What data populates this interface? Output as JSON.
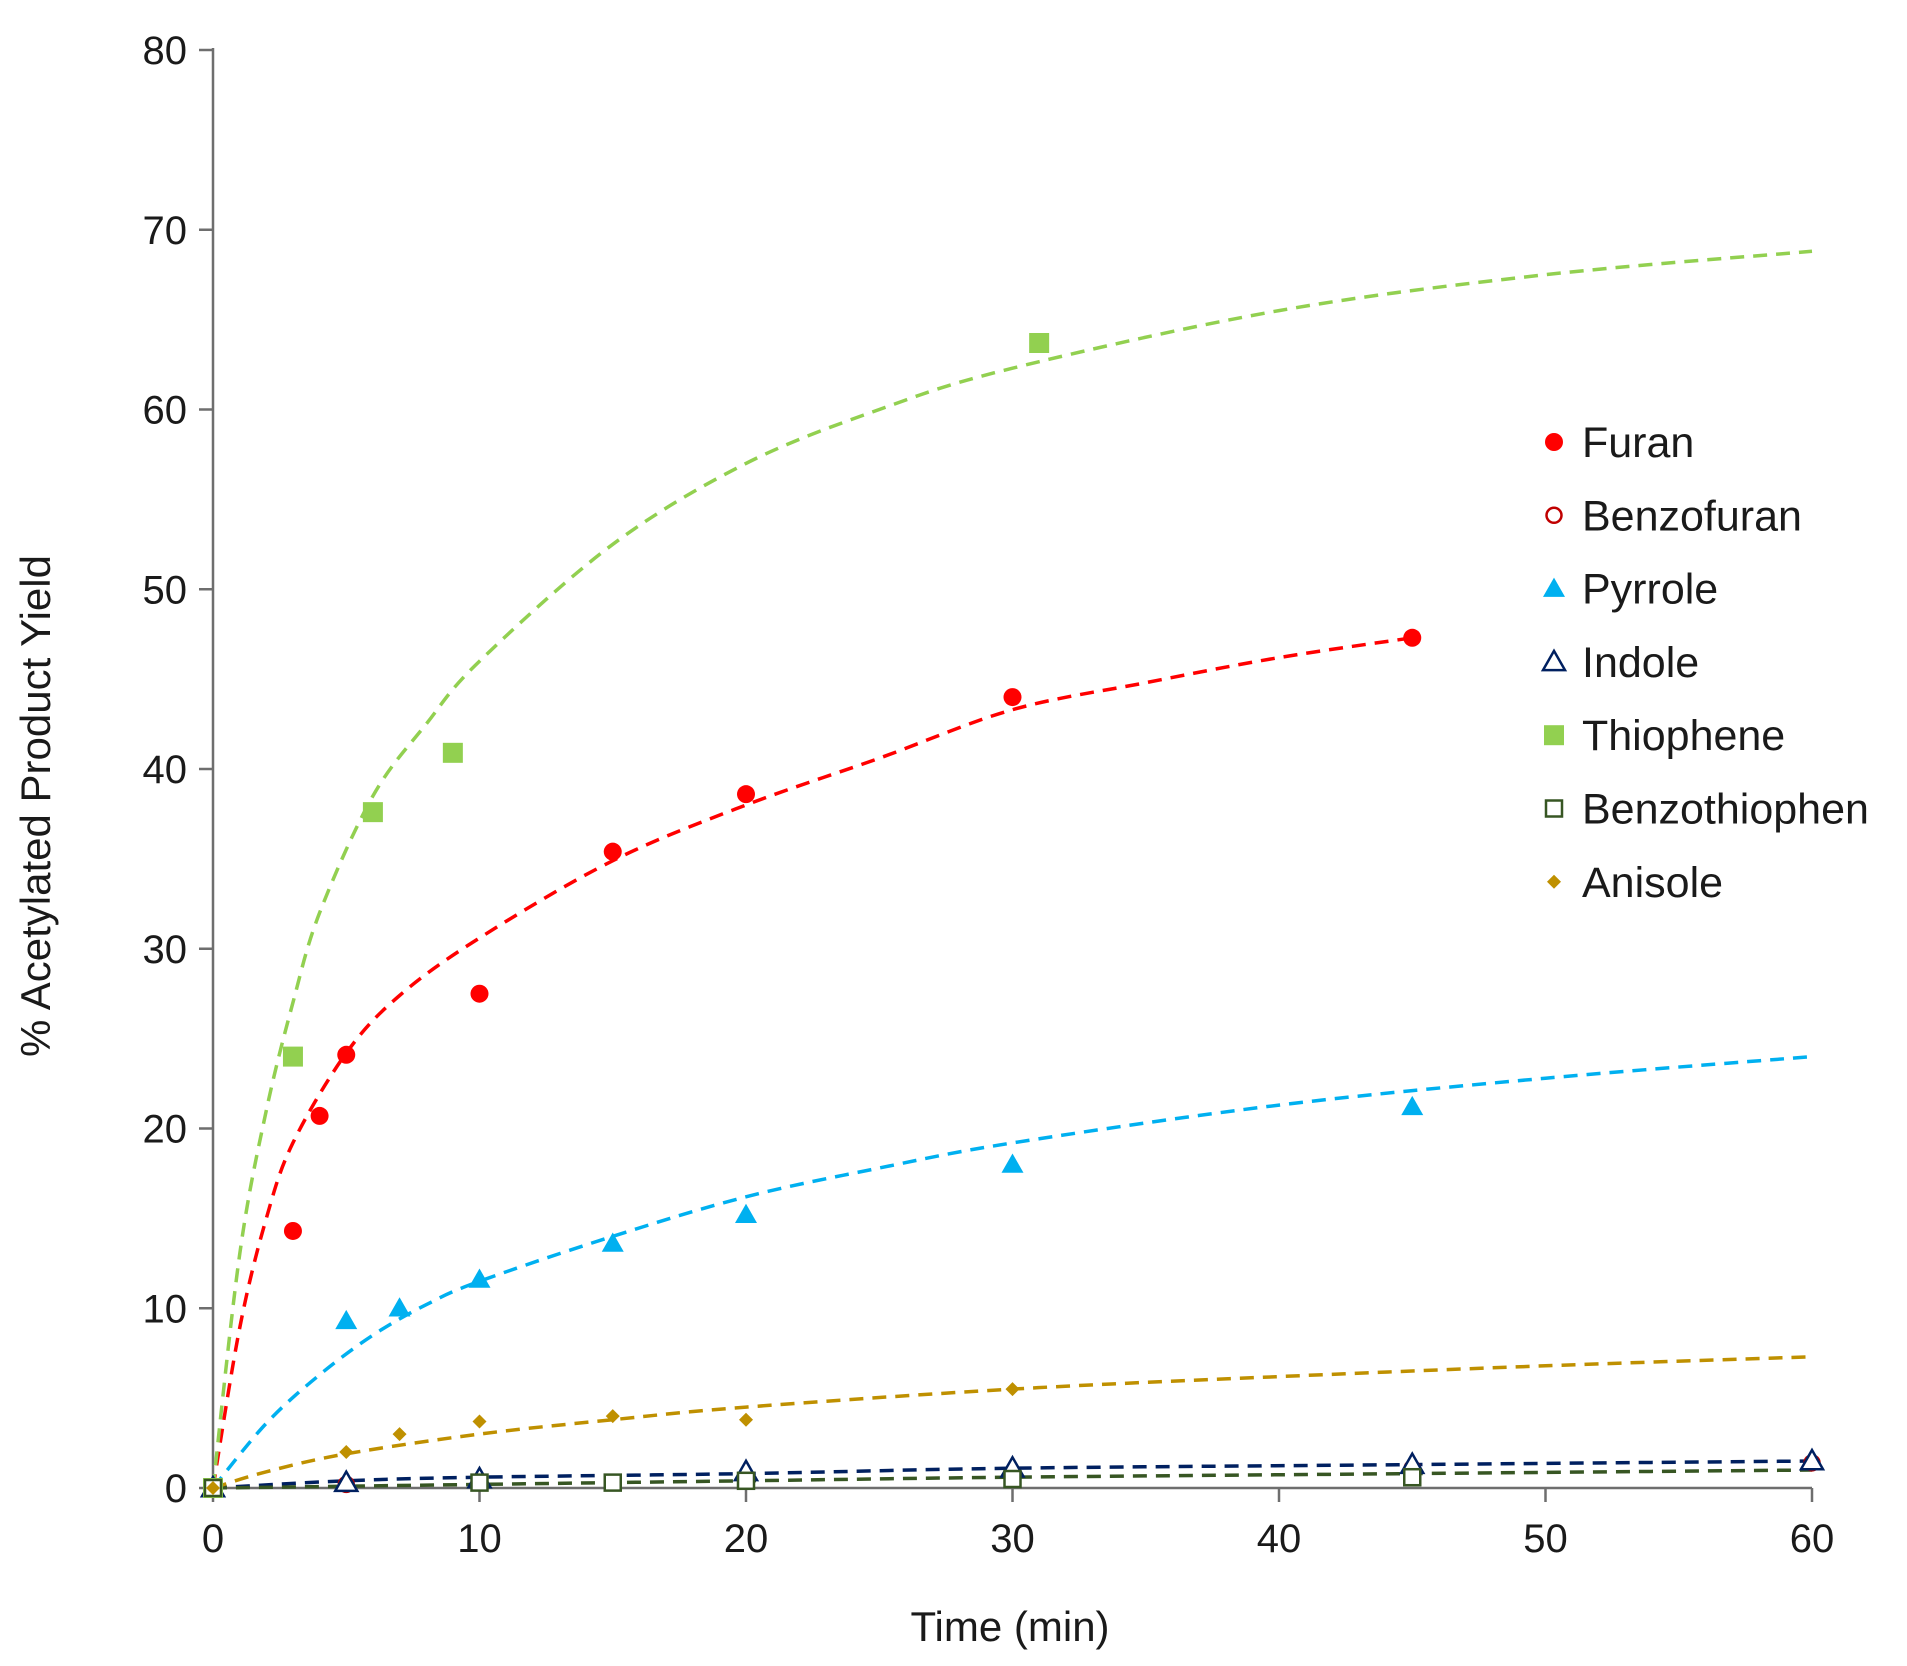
{
  "chart_data": {
    "type": "scatter",
    "title": "",
    "xlabel": "Time (min)",
    "ylabel": "% Acetylated Product Yield",
    "xlim": [
      0,
      60
    ],
    "ylim": [
      0,
      80
    ],
    "xticks": [
      0,
      10,
      20,
      30,
      40,
      50,
      60
    ],
    "yticks": [
      0,
      10,
      20,
      30,
      40,
      50,
      60,
      70,
      80
    ],
    "grid": false,
    "legend_position": "right",
    "series": [
      {
        "name": "Furan",
        "marker": "circle-filled",
        "color": "#ff0000",
        "points": [
          [
            0,
            0
          ],
          [
            3,
            14.3
          ],
          [
            4,
            20.7
          ],
          [
            5,
            24.1
          ],
          [
            10,
            27.5
          ],
          [
            15,
            35.4
          ],
          [
            20,
            38.6
          ],
          [
            30,
            44.0
          ],
          [
            45,
            47.3
          ]
        ],
        "fit": [
          [
            0,
            0
          ],
          [
            1,
            8.9
          ],
          [
            2,
            15.0
          ],
          [
            3,
            19.2
          ],
          [
            5,
            24.2
          ],
          [
            7,
            27.4
          ],
          [
            10,
            30.6
          ],
          [
            15,
            34.9
          ],
          [
            20,
            38.0
          ],
          [
            25,
            40.6
          ],
          [
            30,
            43.3
          ],
          [
            35,
            44.8
          ],
          [
            40,
            46.2
          ],
          [
            45,
            47.3
          ]
        ]
      },
      {
        "name": "Benzofuran",
        "marker": "circle-open",
        "color": "#c00000",
        "points": [
          [
            0,
            0
          ],
          [
            5,
            0.2
          ],
          [
            10,
            0.4
          ],
          [
            20,
            0.6
          ],
          [
            30,
            0.8
          ],
          [
            45,
            1.1
          ],
          [
            60,
            1.4
          ]
        ],
        "fit": []
      },
      {
        "name": "Pyrrole",
        "marker": "triangle-filled",
        "color": "#00b0f0",
        "points": [
          [
            0,
            0
          ],
          [
            5,
            9.3
          ],
          [
            7,
            10.0
          ],
          [
            10,
            11.6
          ],
          [
            15,
            13.6
          ],
          [
            20,
            15.2
          ],
          [
            30,
            18.0
          ],
          [
            45,
            21.2
          ]
        ],
        "fit": [
          [
            0,
            0
          ],
          [
            2,
            3.6
          ],
          [
            4,
            6.3
          ],
          [
            6,
            8.5
          ],
          [
            8,
            10.2
          ],
          [
            10,
            11.5
          ],
          [
            15,
            14.0
          ],
          [
            20,
            16.2
          ],
          [
            25,
            17.8
          ],
          [
            30,
            19.2
          ],
          [
            40,
            21.3
          ],
          [
            50,
            22.8
          ],
          [
            60,
            24.0
          ]
        ]
      },
      {
        "name": "Indole",
        "marker": "triangle-open",
        "color": "#002060",
        "points": [
          [
            0,
            0
          ],
          [
            5,
            0.3
          ],
          [
            10,
            0.5
          ],
          [
            20,
            0.9
          ],
          [
            30,
            1.1
          ],
          [
            45,
            1.3
          ],
          [
            60,
            1.5
          ]
        ],
        "fit": [
          [
            0,
            0
          ],
          [
            5,
            0.4
          ],
          [
            10,
            0.6
          ],
          [
            20,
            0.8
          ],
          [
            30,
            1.1
          ],
          [
            45,
            1.3
          ],
          [
            60,
            1.5
          ]
        ]
      },
      {
        "name": "Thiophene",
        "marker": "square-filled",
        "color": "#92d050",
        "points": [
          [
            0,
            0
          ],
          [
            3,
            24.0
          ],
          [
            6,
            37.6
          ],
          [
            9,
            40.9
          ],
          [
            31,
            63.7
          ]
        ],
        "fit": [
          [
            0,
            0
          ],
          [
            1,
            13.0
          ],
          [
            2,
            21.0
          ],
          [
            3,
            27.0
          ],
          [
            4,
            32.0
          ],
          [
            6,
            38.5
          ],
          [
            8,
            42.5
          ],
          [
            10,
            46.0
          ],
          [
            15,
            52.5
          ],
          [
            20,
            57.0
          ],
          [
            25,
            60.0
          ],
          [
            30,
            62.3
          ],
          [
            40,
            65.5
          ],
          [
            50,
            67.5
          ],
          [
            60,
            68.8
          ]
        ]
      },
      {
        "name": "Benzothiophen",
        "marker": "square-open",
        "color": "#375623",
        "points": [
          [
            0,
            0
          ],
          [
            10,
            0.3
          ],
          [
            15,
            0.3
          ],
          [
            20,
            0.4
          ],
          [
            30,
            0.5
          ],
          [
            45,
            0.6
          ]
        ],
        "fit": [
          [
            0,
            0
          ],
          [
            10,
            0.2
          ],
          [
            20,
            0.4
          ],
          [
            30,
            0.6
          ],
          [
            45,
            0.8
          ],
          [
            60,
            1.0
          ]
        ]
      },
      {
        "name": "Anisole",
        "marker": "diamond-filled",
        "color": "#bf9000",
        "points": [
          [
            0,
            0
          ],
          [
            5,
            2.0
          ],
          [
            7,
            3.0
          ],
          [
            10,
            3.7
          ],
          [
            15,
            4.0
          ],
          [
            20,
            3.8
          ],
          [
            30,
            5.5
          ]
        ],
        "fit": [
          [
            0,
            0
          ],
          [
            2,
            0.9
          ],
          [
            5,
            1.9
          ],
          [
            10,
            3.0
          ],
          [
            15,
            3.8
          ],
          [
            20,
            4.5
          ],
          [
            30,
            5.5
          ],
          [
            40,
            6.2
          ],
          [
            50,
            6.8
          ],
          [
            60,
            7.3
          ]
        ]
      }
    ]
  }
}
